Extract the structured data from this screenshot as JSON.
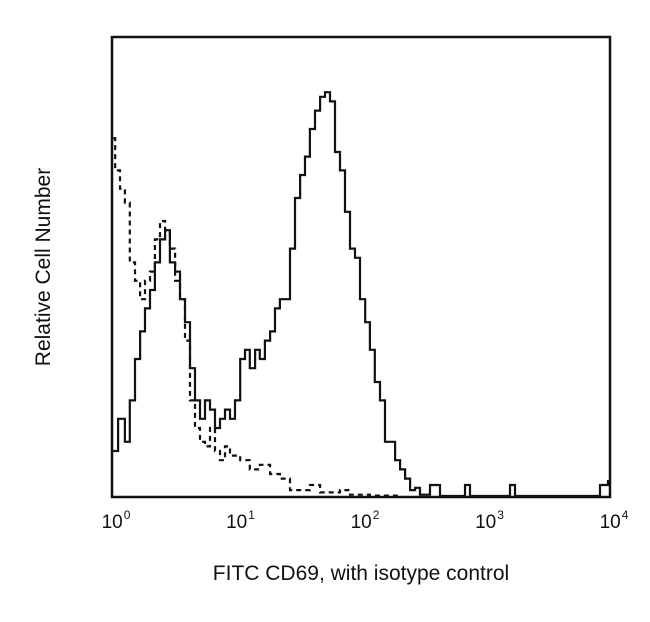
{
  "chart_data": {
    "type": "line",
    "title": "",
    "xlabel": "FITC CD69, with isotype control",
    "ylabel": "Relative Cell Number",
    "xscale": "log",
    "xlim": [
      1,
      10000
    ],
    "ylim": [
      0,
      100
    ],
    "grid": false,
    "x_ticks": [
      {
        "base": "10",
        "exp": "0",
        "value": 1
      },
      {
        "base": "10",
        "exp": "1",
        "value": 10
      },
      {
        "base": "10",
        "exp": "2",
        "value": 100
      },
      {
        "base": "10",
        "exp": "3",
        "value": 1000
      },
      {
        "base": "10",
        "exp": "4",
        "value": 10000
      }
    ],
    "series": [
      {
        "style": "solid",
        "color": "#111111",
        "x": [
          1.02,
          1.12,
          1.27,
          1.39,
          1.53,
          1.68,
          1.84,
          2.02,
          2.21,
          2.43,
          2.67,
          2.92,
          3.21,
          3.52,
          3.86,
          4.23,
          4.64,
          5.09,
          5.58,
          6.12,
          6.72,
          7.37,
          8.09,
          8.87,
          9.72,
          10.7,
          11.7,
          12.8,
          14.1,
          15.4,
          16.9,
          18.6,
          20.4,
          22.3,
          24.5,
          26.9,
          29.5,
          32.4,
          35.5,
          38.9,
          42.7,
          46.9,
          51.4,
          56.4,
          61.8,
          67.8,
          74.4,
          81.6,
          89.5,
          98.2,
          108,
          118,
          129,
          142,
          156,
          171,
          188,
          206,
          226,
          248,
          272,
          298,
          358,
          431,
          684,
          751,
          1573,
          1726,
          8310,
          9640
        ],
        "y": [
          10,
          17,
          12,
          21,
          30,
          36,
          41,
          45,
          51,
          56,
          58,
          51,
          49,
          43,
          38,
          28,
          21,
          17,
          21,
          19,
          15,
          17,
          19,
          17,
          21,
          30,
          32,
          28,
          32,
          30,
          34,
          36,
          41,
          43,
          43,
          54,
          65,
          70,
          74,
          80,
          84,
          87,
          88,
          86,
          75,
          71,
          62,
          54,
          52,
          43,
          38,
          32,
          25,
          21,
          12,
          12,
          8,
          6,
          4,
          1.5,
          2,
          0.5,
          2.6,
          0,
          2.6,
          0,
          2.6,
          0,
          2.6,
          3.7
        ]
      },
      {
        "style": "dashed",
        "color": "#111111",
        "x": [
          1.02,
          1.06,
          1.16,
          1.27,
          1.39,
          1.53,
          1.68,
          1.84,
          2.02,
          2.21,
          2.43,
          2.67,
          2.92,
          3.21,
          3.52,
          3.86,
          4.23,
          4.64,
          5.09,
          5.58,
          6.12,
          6.72,
          7.37,
          8.09,
          8.87,
          10.7,
          12.8,
          15.4,
          18.6,
          22.3,
          26.9,
          32.4,
          38.9,
          46.9,
          67.8,
          81.6,
          118,
          206
        ],
        "y": [
          78,
          71,
          67,
          64,
          51,
          47,
          43,
          47,
          49,
          56,
          60,
          58,
          54,
          47,
          43,
          34,
          21,
          15,
          12,
          11,
          15,
          10,
          8,
          11,
          9,
          8,
          6,
          7,
          5,
          4,
          1.5,
          1.5,
          2.6,
          1,
          1.5,
          0.5,
          0.3,
          0
        ]
      }
    ]
  }
}
